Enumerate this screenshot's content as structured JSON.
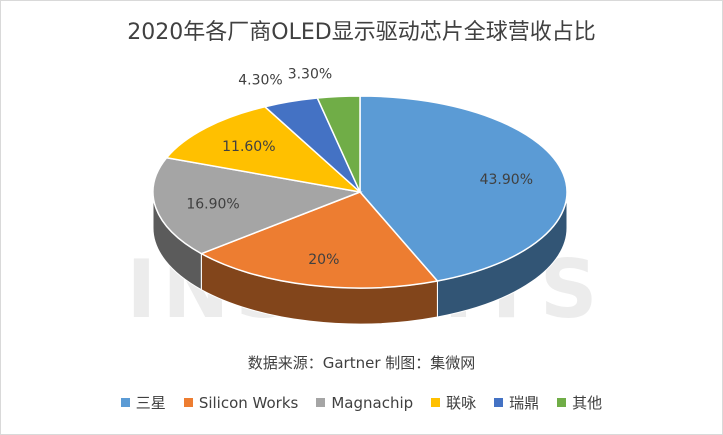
{
  "chart_data": {
    "type": "pie",
    "title": "2020年各厂商OLED显示驱动芯片全球营收占比",
    "categories": [
      "三星",
      "Silicon Works",
      "Magnachip",
      "联咏",
      "瑞鼎",
      "其他"
    ],
    "values": [
      43.9,
      20,
      16.9,
      11.6,
      4.3,
      3.3
    ],
    "data_labels": [
      "43.90%",
      "20%",
      "16.90%",
      "11.60%",
      "4.30%",
      "3.30%"
    ],
    "colors": [
      "#5B9BD5",
      "#ED7D31",
      "#A5A5A5",
      "#FFC000",
      "#4472C4",
      "#70AD47"
    ],
    "legend_position": "bottom"
  },
  "source_note": "数据来源：Gartner  制图：集微网",
  "watermark": "JIWEI INSIGHTS"
}
